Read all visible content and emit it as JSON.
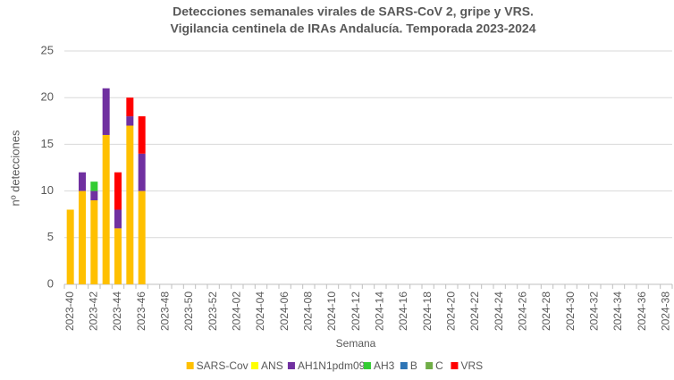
{
  "chart_data": {
    "type": "stacked_bar",
    "title": [
      "Detecciones semanales virales de SARS-CoV 2, gripe y VRS.",
      "Vigilancia  centinela de IRAs Andalucía. Temporada 2023-2024"
    ],
    "x_label": "Semana",
    "y_label": "nº detecciones",
    "categories": [
      "2023-40",
      null,
      "2023-42",
      null,
      "2023-44",
      null,
      "2023-46",
      null,
      "2023-48",
      null,
      "2023-50",
      null,
      "2023-52",
      null,
      "2024-02",
      null,
      "2024-04",
      null,
      "2024-06",
      null,
      "2024-08",
      null,
      "2024-10",
      null,
      "2024-12",
      null,
      "2024-14",
      null,
      "2024-16",
      null,
      "2024-18",
      null,
      "2024-20",
      null,
      "2024-22",
      null,
      "2024-24",
      null,
      "2024-26",
      null,
      "2024-28",
      null,
      "2024-30",
      null,
      "2024-32",
      null,
      "2024-34",
      null,
      "2024-36",
      null,
      "2024-38"
    ],
    "series": [
      {
        "name": "SARS-Cov",
        "color": "#ffc000",
        "values": [
          8,
          10,
          9,
          16,
          6,
          17,
          10,
          null,
          null,
          null,
          null,
          null,
          null,
          null,
          null,
          null,
          null,
          null,
          null,
          null,
          null,
          null,
          null,
          null,
          null,
          null,
          null,
          null,
          null,
          null,
          null,
          null,
          null,
          null,
          null,
          null,
          null,
          null,
          null,
          null,
          null,
          null,
          null,
          null,
          null,
          null,
          null,
          null,
          null,
          null,
          null
        ]
      },
      {
        "name": "ANS",
        "color": "#ffff00",
        "values": [
          0,
          0,
          0,
          0,
          0,
          0,
          0,
          null,
          null,
          null,
          null,
          null,
          null,
          null,
          null,
          null,
          null,
          null,
          null,
          null,
          null,
          null,
          null,
          null,
          null,
          null,
          null,
          null,
          null,
          null,
          null,
          null,
          null,
          null,
          null,
          null,
          null,
          null,
          null,
          null,
          null,
          null,
          null,
          null,
          null,
          null,
          null,
          null,
          null,
          null,
          null
        ]
      },
      {
        "name": "AH1N1pdm09",
        "color": "#7030a0",
        "values": [
          0,
          2,
          1,
          5,
          2,
          1,
          4,
          null,
          null,
          null,
          null,
          null,
          null,
          null,
          null,
          null,
          null,
          null,
          null,
          null,
          null,
          null,
          null,
          null,
          null,
          null,
          null,
          null,
          null,
          null,
          null,
          null,
          null,
          null,
          null,
          null,
          null,
          null,
          null,
          null,
          null,
          null,
          null,
          null,
          null,
          null,
          null,
          null,
          null,
          null,
          null
        ]
      },
      {
        "name": "AH3",
        "color": "#33cc33",
        "values": [
          0,
          0,
          1,
          0,
          0,
          0,
          0,
          null,
          null,
          null,
          null,
          null,
          null,
          null,
          null,
          null,
          null,
          null,
          null,
          null,
          null,
          null,
          null,
          null,
          null,
          null,
          null,
          null,
          null,
          null,
          null,
          null,
          null,
          null,
          null,
          null,
          null,
          null,
          null,
          null,
          null,
          null,
          null,
          null,
          null,
          null,
          null,
          null,
          null,
          null,
          null
        ]
      },
      {
        "name": "B",
        "color": "#2e75b6",
        "values": [
          0,
          0,
          0,
          0,
          0,
          0,
          0,
          null,
          null,
          null,
          null,
          null,
          null,
          null,
          null,
          null,
          null,
          null,
          null,
          null,
          null,
          null,
          null,
          null,
          null,
          null,
          null,
          null,
          null,
          null,
          null,
          null,
          null,
          null,
          null,
          null,
          null,
          null,
          null,
          null,
          null,
          null,
          null,
          null,
          null,
          null,
          null,
          null,
          null,
          null,
          null
        ]
      },
      {
        "name": "C",
        "color": "#70ad47",
        "values": [
          0,
          0,
          0,
          0,
          0,
          0,
          0,
          null,
          null,
          null,
          null,
          null,
          null,
          null,
          null,
          null,
          null,
          null,
          null,
          null,
          null,
          null,
          null,
          null,
          null,
          null,
          null,
          null,
          null,
          null,
          null,
          null,
          null,
          null,
          null,
          null,
          null,
          null,
          null,
          null,
          null,
          null,
          null,
          null,
          null,
          null,
          null,
          null,
          null,
          null,
          null
        ]
      },
      {
        "name": "VRS",
        "color": "#ff0000",
        "values": [
          0,
          0,
          0,
          0,
          4,
          2,
          4,
          null,
          null,
          null,
          null,
          null,
          null,
          null,
          null,
          null,
          null,
          null,
          null,
          null,
          null,
          null,
          null,
          null,
          null,
          null,
          null,
          null,
          null,
          null,
          null,
          null,
          null,
          null,
          null,
          null,
          null,
          null,
          null,
          null,
          null,
          null,
          null,
          null,
          null,
          null,
          null,
          null,
          null,
          null,
          null
        ]
      }
    ],
    "ylim": [
      0,
      25
    ],
    "yticks": [
      0,
      5,
      10,
      15,
      20,
      25
    ],
    "grid": true,
    "legend": "bottom"
  }
}
